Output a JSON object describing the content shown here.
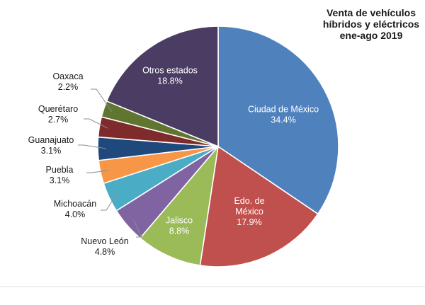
{
  "chart_data": {
    "type": "pie",
    "title": [
      "Venta de vehículos",
      "híbridos y eléctricos",
      "ene-ago 2019"
    ],
    "slices": [
      {
        "name": "Ciudad de México",
        "value": 34.4,
        "label_lines": [
          "Ciudad de México",
          "34.4%"
        ],
        "color": "#4f81bd",
        "placement": "inside"
      },
      {
        "name": "Edo. de México",
        "value": 17.9,
        "label_lines": [
          "Edo. de",
          "México",
          "17.9%"
        ],
        "color": "#c0504d",
        "placement": "inside"
      },
      {
        "name": "Jalisco",
        "value": 8.8,
        "label_lines": [
          "Jalisco",
          "8.8%"
        ],
        "color": "#9bbb59",
        "placement": "inside"
      },
      {
        "name": "Nuevo León",
        "value": 4.8,
        "label_lines": [
          "Nuevo León",
          "4.8%"
        ],
        "color": "#8064a2",
        "placement": "outside"
      },
      {
        "name": "Michoacán",
        "value": 4.0,
        "label_lines": [
          "Michoacán",
          "4.0%"
        ],
        "color": "#4bacc6",
        "placement": "outside"
      },
      {
        "name": "Puebla",
        "value": 3.1,
        "label_lines": [
          "Puebla",
          "3.1%"
        ],
        "color": "#f79646",
        "placement": "outside"
      },
      {
        "name": "Guanajuato",
        "value": 3.1,
        "label_lines": [
          "Guanajuato",
          "3.1%"
        ],
        "color": "#1f497d",
        "placement": "outside"
      },
      {
        "name": "Querétaro",
        "value": 2.7,
        "label_lines": [
          "Querétaro",
          "2.7%"
        ],
        "color": "#7f2b2b",
        "placement": "outside"
      },
      {
        "name": "Oaxaca",
        "value": 2.2,
        "label_lines": [
          "Oaxaca",
          "2.2%"
        ],
        "color": "#5f7530",
        "placement": "outside"
      },
      {
        "name": "Otros estados",
        "value": 18.8,
        "label_lines": [
          "Otros estados",
          "18.8%"
        ],
        "color": "#4a3c62",
        "placement": "inside"
      }
    ]
  }
}
